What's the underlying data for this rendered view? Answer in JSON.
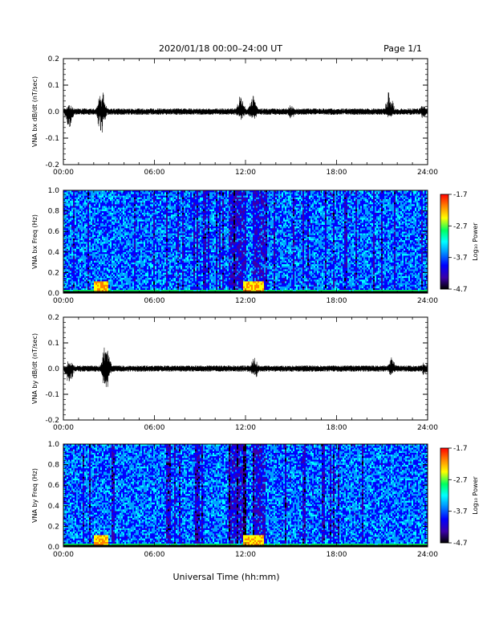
{
  "header": {
    "title": "2020/01/18  00:00–24:00 UT",
    "page": "Page 1/1"
  },
  "xaxis": {
    "label": "Universal Time (hh:mm)",
    "ticks": [
      "00:00",
      "06:00",
      "12:00",
      "18:00",
      "24:00"
    ],
    "range_hours": [
      0,
      24
    ]
  },
  "colorbar": {
    "label": "Log₁₀ Power",
    "ticks": [
      "-1.7",
      "-2.7",
      "-3.7",
      "-4.7"
    ],
    "range": [
      -4.7,
      -1.7
    ],
    "colors": [
      "#000000",
      "#3b00a8",
      "#0000ff",
      "#00a0ff",
      "#00ffff",
      "#00ff60",
      "#ffff00",
      "#ff8000",
      "#ff0000"
    ]
  },
  "chart_data": [
    {
      "type": "line",
      "ylabel": "VNA bx dB/dt (nT/sec)",
      "ylim": [
        -0.2,
        0.2
      ],
      "yticks": [
        "0.2",
        "0.1",
        "0.0",
        "-0.1",
        "-0.2"
      ],
      "baseline_amplitude": 0.012,
      "bursts": [
        {
          "t_hours": 2.5,
          "peak": 0.09,
          "trough": -0.09
        },
        {
          "t_hours": 0.4,
          "peak": 0.03,
          "trough": -0.07
        },
        {
          "t_hours": 11.7,
          "peak": 0.07,
          "trough": -0.04
        },
        {
          "t_hours": 12.5,
          "peak": 0.08,
          "trough": -0.05
        },
        {
          "t_hours": 21.5,
          "peak": 0.09,
          "trough": -0.03
        },
        {
          "t_hours": 15.0,
          "peak": 0.03,
          "trough": -0.03
        },
        {
          "t_hours": 23.7,
          "peak": 0.03,
          "trough": -0.03
        }
      ]
    },
    {
      "type": "heatmap",
      "ylabel": "VNA bx Freq (Hz)",
      "ylim": [
        0.0,
        1.0
      ],
      "yticks": [
        "1.0",
        "0.8",
        "0.6",
        "0.4",
        "0.2",
        "0.0"
      ],
      "background_log_power": -3.7,
      "low_freq_enhancement_hours": [
        2.5,
        12.5
      ]
    },
    {
      "type": "line",
      "ylabel": "VNA by dB/dt (nT/sec)",
      "ylim": [
        -0.2,
        0.2
      ],
      "yticks": [
        "0.2",
        "0.1",
        "0.0",
        "-0.1",
        "-0.2"
      ],
      "baseline_amplitude": 0.012,
      "bursts": [
        {
          "t_hours": 2.8,
          "peak": 0.11,
          "trough": -0.09
        },
        {
          "t_hours": 0.4,
          "peak": 0.04,
          "trough": -0.08
        },
        {
          "t_hours": 12.6,
          "peak": 0.05,
          "trough": -0.05
        },
        {
          "t_hours": 21.6,
          "peak": 0.05,
          "trough": -0.03
        },
        {
          "t_hours": 23.8,
          "peak": 0.03,
          "trough": -0.03
        }
      ]
    },
    {
      "type": "heatmap",
      "ylabel": "VNA by Freq (Hz)",
      "ylim": [
        0.0,
        1.0
      ],
      "yticks": [
        "1.0",
        "0.8",
        "0.6",
        "0.4",
        "0.2",
        "0.0"
      ],
      "background_log_power": -3.7,
      "low_freq_enhancement_hours": [
        2.5,
        12.5
      ]
    }
  ]
}
